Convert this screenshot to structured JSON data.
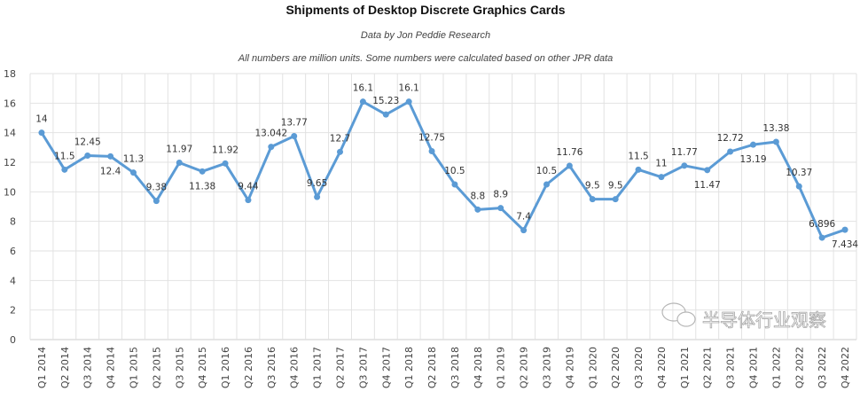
{
  "chart_data": {
    "type": "line",
    "title": "Shipments of Desktop Discrete Graphics Cards",
    "subtitle": "Data by Jon Peddie Research",
    "note": "All numbers are million units. Some numbers were calculated based on other JPR data",
    "categories": [
      "Q1 2014",
      "Q2 2014",
      "Q3 2014",
      "Q4 2014",
      "Q1 2015",
      "Q2 2015",
      "Q3 2015",
      "Q4 2015",
      "Q1 2016",
      "Q2 2016",
      "Q3 2016",
      "Q4 2016",
      "Q1 2017",
      "Q2 2017",
      "Q3 2017",
      "Q4 2017",
      "Q1 2018",
      "Q2 2018",
      "Q3 2018",
      "Q4 2018",
      "Q1 2019",
      "Q2 2019",
      "Q3 2019",
      "Q4 2019",
      "Q1 2020",
      "Q2 2020",
      "Q3 2020",
      "Q4 2020",
      "Q1 2021",
      "Q2 2021",
      "Q3 2021",
      "Q4 2021",
      "Q1 2022",
      "Q2 2022",
      "Q3 2022",
      "Q4 2022"
    ],
    "values": [
      14,
      11.5,
      12.45,
      12.4,
      11.3,
      9.38,
      11.97,
      11.38,
      11.92,
      9.44,
      13.042,
      13.77,
      9.65,
      12.7,
      16.1,
      15.23,
      16.1,
      12.75,
      10.5,
      8.8,
      8.9,
      7.4,
      10.5,
      11.76,
      9.5,
      9.5,
      11.5,
      11,
      11.77,
      11.47,
      12.72,
      13.19,
      13.38,
      10.37,
      6.896,
      7.434
    ],
    "data_labels": [
      "14",
      "11.5",
      "12.45",
      "12.4",
      "11.3",
      "9.38",
      "11.97",
      "11.38",
      "11.92",
      "9.44",
      "13.042",
      "13.77",
      "9.65",
      "12.7",
      "16.1",
      "15.23",
      "16.1",
      "12.75",
      "10.5",
      "8.8",
      "8.9",
      "7.4",
      "10.5",
      "11.76",
      "9.5",
      "9.5",
      "11.5",
      "11",
      "11.77",
      "11.47",
      "12.72",
      "13.19",
      "13.38",
      "10.37",
      "6.896",
      "7.434"
    ],
    "yticks": [
      0,
      2,
      4,
      6,
      8,
      10,
      12,
      14,
      16,
      18
    ],
    "ylim": [
      0,
      18
    ],
    "xlabel": "",
    "ylabel": "",
    "grid": true,
    "line_color": "#5b9bd5"
  },
  "watermark": "半导体行业观察"
}
